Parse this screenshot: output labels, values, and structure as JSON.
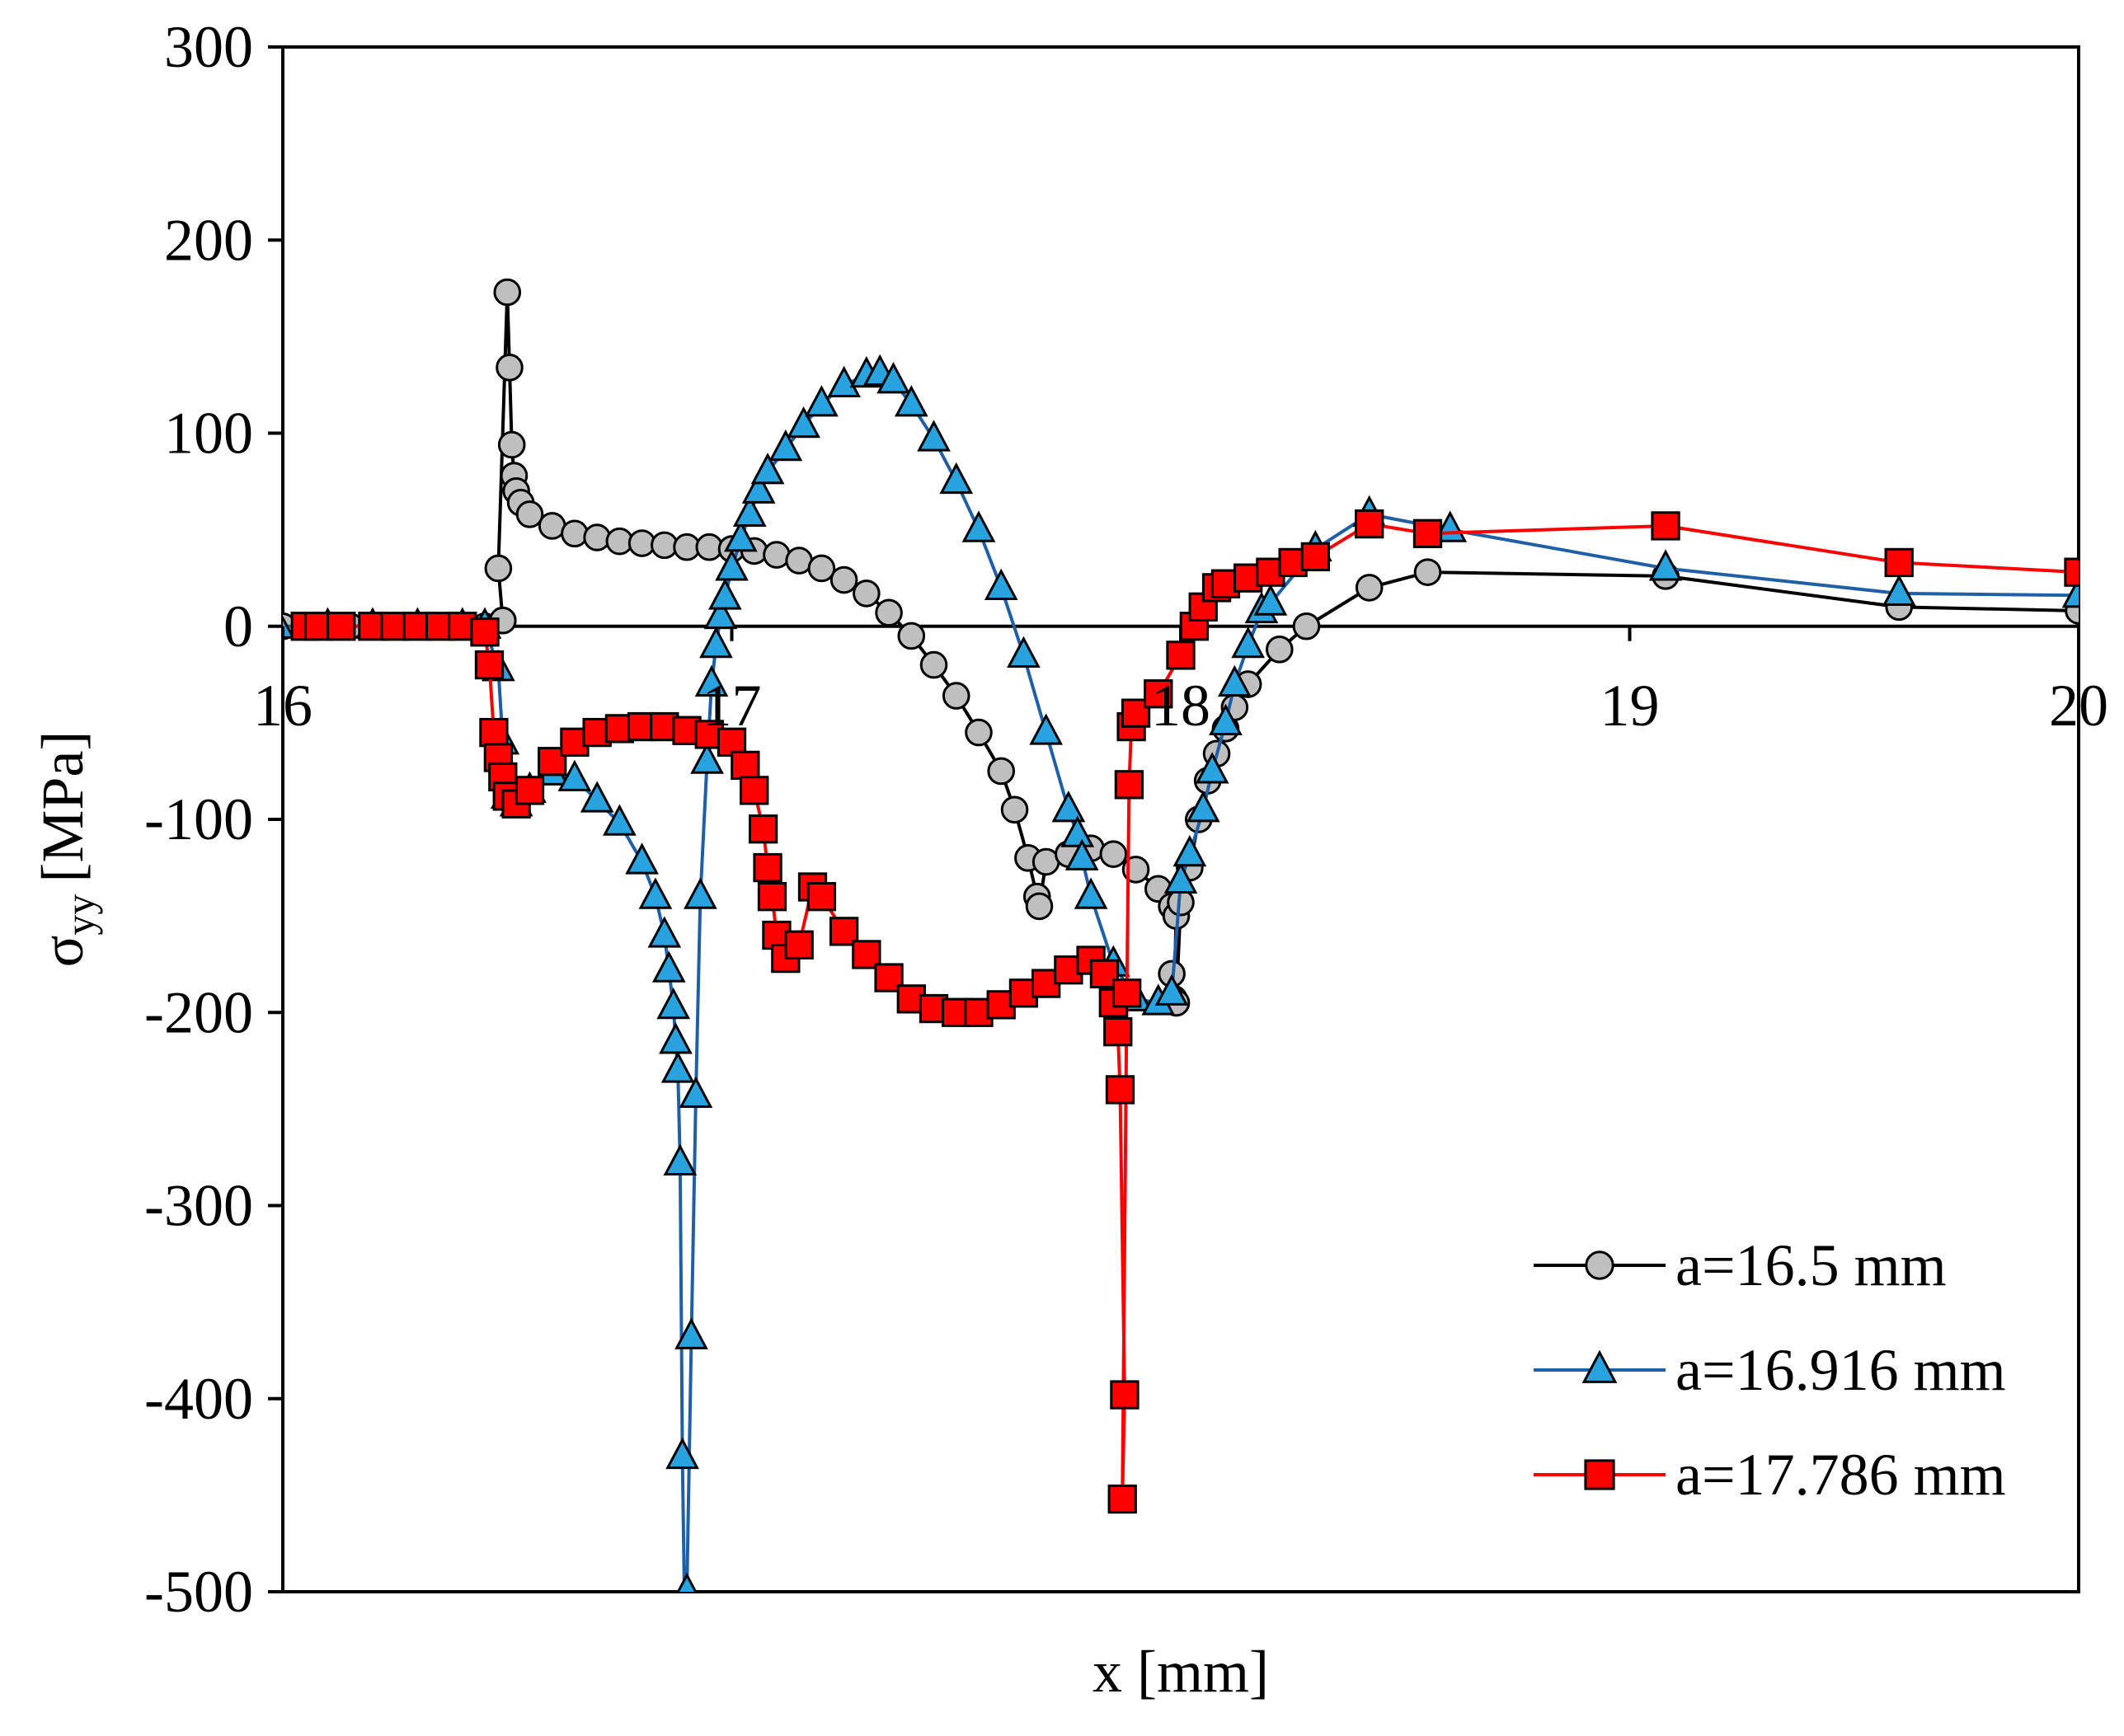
{
  "chart_data": {
    "type": "line",
    "title": "",
    "xlabel": "x [mm]",
    "ylabel_symbol": "σ",
    "ylabel_sub": "yy",
    "ylabel_unit": "[MPa]",
    "xlim": [
      16,
      20
    ],
    "ylim": [
      -500,
      300
    ],
    "xticks": [
      16,
      17,
      18,
      19,
      20
    ],
    "xtick_labels": [
      "16",
      "17",
      "18",
      "19",
      "20"
    ],
    "yticks": [
      300,
      200,
      100,
      0,
      -100,
      -200,
      -300,
      -400,
      -500
    ],
    "ytick_labels": [
      "300",
      "200",
      "100",
      "0",
      "-100",
      "-200",
      "-300",
      "-400",
      "-500"
    ],
    "grid": false,
    "legend_position": "bottom-right",
    "series": [
      {
        "name": "a=16.5 mm",
        "marker": "circle",
        "line_color": "#000000",
        "marker_fill": "#bfbfbf",
        "points": [
          [
            16.0,
            0
          ],
          [
            16.05,
            0
          ],
          [
            16.1,
            0
          ],
          [
            16.15,
            0
          ],
          [
            16.2,
            0
          ],
          [
            16.25,
            0
          ],
          [
            16.3,
            0
          ],
          [
            16.35,
            0
          ],
          [
            16.4,
            0
          ],
          [
            16.45,
            0
          ],
          [
            16.49,
            3
          ],
          [
            16.48,
            30
          ],
          [
            16.5,
            173
          ],
          [
            16.505,
            134
          ],
          [
            16.51,
            94
          ],
          [
            16.515,
            78
          ],
          [
            16.52,
            70
          ],
          [
            16.53,
            64
          ],
          [
            16.55,
            58
          ],
          [
            16.6,
            52
          ],
          [
            16.65,
            48
          ],
          [
            16.7,
            46
          ],
          [
            16.75,
            44
          ],
          [
            16.8,
            43
          ],
          [
            16.85,
            42
          ],
          [
            16.9,
            41
          ],
          [
            16.95,
            41
          ],
          [
            17.0,
            40
          ],
          [
            17.05,
            39
          ],
          [
            17.1,
            37
          ],
          [
            17.15,
            34
          ],
          [
            17.2,
            30
          ],
          [
            17.25,
            24
          ],
          [
            17.3,
            17
          ],
          [
            17.35,
            7
          ],
          [
            17.4,
            -5
          ],
          [
            17.45,
            -20
          ],
          [
            17.5,
            -36
          ],
          [
            17.55,
            -55
          ],
          [
            17.6,
            -75
          ],
          [
            17.63,
            -95
          ],
          [
            17.66,
            -120
          ],
          [
            17.68,
            -140
          ],
          [
            17.685,
            -145
          ],
          [
            17.7,
            -122
          ],
          [
            17.75,
            -118
          ],
          [
            17.8,
            -115
          ],
          [
            17.85,
            -118
          ],
          [
            17.9,
            -126
          ],
          [
            17.95,
            -136
          ],
          [
            17.98,
            -145
          ],
          [
            17.99,
            -150
          ],
          [
            17.985,
            -193
          ],
          [
            17.98,
            -180
          ],
          [
            17.99,
            -195
          ],
          [
            18.0,
            -143
          ],
          [
            18.02,
            -125
          ],
          [
            18.04,
            -100
          ],
          [
            18.06,
            -80
          ],
          [
            18.08,
            -66
          ],
          [
            18.1,
            -53
          ],
          [
            18.12,
            -42
          ],
          [
            18.15,
            -30
          ],
          [
            18.22,
            -12
          ],
          [
            18.28,
            0
          ],
          [
            18.42,
            20
          ],
          [
            18.55,
            28
          ],
          [
            19.08,
            26
          ],
          [
            19.6,
            10
          ],
          [
            20.0,
            8
          ]
        ]
      },
      {
        "name": "a=16.916 mm",
        "marker": "triangle",
        "line_color": "#1f5fa8",
        "marker_fill": "#29a3df",
        "points": [
          [
            15.99,
            0
          ],
          [
            16.1,
            0
          ],
          [
            16.2,
            0
          ],
          [
            16.3,
            0
          ],
          [
            16.4,
            0
          ],
          [
            16.45,
            0
          ],
          [
            16.48,
            -22
          ],
          [
            16.49,
            -60
          ],
          [
            16.5,
            -88
          ],
          [
            16.52,
            -92
          ],
          [
            16.55,
            -85
          ],
          [
            16.6,
            -76
          ],
          [
            16.65,
            -79
          ],
          [
            16.7,
            -90
          ],
          [
            16.75,
            -102
          ],
          [
            16.8,
            -122
          ],
          [
            16.83,
            -140
          ],
          [
            16.85,
            -160
          ],
          [
            16.86,
            -178
          ],
          [
            16.87,
            -197
          ],
          [
            16.875,
            -215
          ],
          [
            16.88,
            -230
          ],
          [
            16.885,
            -278
          ],
          [
            16.89,
            -430
          ],
          [
            16.895,
            -510
          ],
          [
            16.9,
            -500
          ],
          [
            16.91,
            -368
          ],
          [
            16.92,
            -243
          ],
          [
            16.93,
            -140
          ],
          [
            16.945,
            -70
          ],
          [
            16.955,
            -30
          ],
          [
            16.965,
            -10
          ],
          [
            16.975,
            5
          ],
          [
            16.985,
            15
          ],
          [
            17.0,
            30
          ],
          [
            17.02,
            45
          ],
          [
            17.04,
            58
          ],
          [
            17.06,
            70
          ],
          [
            17.08,
            80
          ],
          [
            17.12,
            92
          ],
          [
            17.16,
            104
          ],
          [
            17.2,
            115
          ],
          [
            17.25,
            125
          ],
          [
            17.3,
            130
          ],
          [
            17.33,
            131
          ],
          [
            17.36,
            127
          ],
          [
            17.4,
            115
          ],
          [
            17.45,
            97
          ],
          [
            17.5,
            75
          ],
          [
            17.55,
            50
          ],
          [
            17.6,
            20
          ],
          [
            17.65,
            -15
          ],
          [
            17.7,
            -55
          ],
          [
            17.75,
            -95
          ],
          [
            17.77,
            -108
          ],
          [
            17.78,
            -120
          ],
          [
            17.8,
            -140
          ],
          [
            17.85,
            -175
          ],
          [
            17.9,
            -193
          ],
          [
            17.95,
            -195
          ],
          [
            17.98,
            -190
          ],
          [
            18.0,
            -132
          ],
          [
            18.02,
            -118
          ],
          [
            18.05,
            -95
          ],
          [
            18.07,
            -75
          ],
          [
            18.1,
            -50
          ],
          [
            18.12,
            -30
          ],
          [
            18.15,
            -10
          ],
          [
            18.18,
            8
          ],
          [
            18.2,
            12
          ],
          [
            18.3,
            40
          ],
          [
            18.42,
            58
          ],
          [
            18.6,
            50
          ],
          [
            19.08,
            30
          ],
          [
            19.6,
            17
          ],
          [
            20.0,
            16
          ]
        ]
      },
      {
        "name": "a=17.786 mm",
        "marker": "square",
        "line_color": "#ff0000",
        "marker_fill": "#ff0000",
        "points": [
          [
            16.05,
            0
          ],
          [
            16.08,
            0
          ],
          [
            16.13,
            0
          ],
          [
            16.2,
            0
          ],
          [
            16.25,
            0
          ],
          [
            16.3,
            0
          ],
          [
            16.35,
            0
          ],
          [
            16.4,
            0
          ],
          [
            16.45,
            -3
          ],
          [
            16.46,
            -20
          ],
          [
            16.47,
            -55
          ],
          [
            16.48,
            -68
          ],
          [
            16.49,
            -78
          ],
          [
            16.5,
            -88
          ],
          [
            16.52,
            -92
          ],
          [
            16.55,
            -85
          ],
          [
            16.6,
            -70
          ],
          [
            16.65,
            -60
          ],
          [
            16.7,
            -55
          ],
          [
            16.75,
            -53
          ],
          [
            16.8,
            -52
          ],
          [
            16.85,
            -52
          ],
          [
            16.9,
            -54
          ],
          [
            16.95,
            -56
          ],
          [
            17.0,
            -60
          ],
          [
            17.03,
            -72
          ],
          [
            17.05,
            -85
          ],
          [
            17.07,
            -105
          ],
          [
            17.08,
            -125
          ],
          [
            17.09,
            -140
          ],
          [
            17.1,
            -160
          ],
          [
            17.12,
            -172
          ],
          [
            17.15,
            -165
          ],
          [
            17.18,
            -135
          ],
          [
            17.2,
            -140
          ],
          [
            17.25,
            -158
          ],
          [
            17.3,
            -170
          ],
          [
            17.35,
            -182
          ],
          [
            17.4,
            -193
          ],
          [
            17.45,
            -198
          ],
          [
            17.5,
            -200
          ],
          [
            17.55,
            -200
          ],
          [
            17.6,
            -196
          ],
          [
            17.65,
            -190
          ],
          [
            17.7,
            -185
          ],
          [
            17.75,
            -178
          ],
          [
            17.8,
            -173
          ],
          [
            17.83,
            -180
          ],
          [
            17.85,
            -195
          ],
          [
            17.86,
            -210
          ],
          [
            17.865,
            -240
          ],
          [
            17.875,
            -398
          ],
          [
            17.87,
            -452
          ],
          [
            17.88,
            -190
          ],
          [
            17.885,
            -82
          ],
          [
            17.89,
            -52
          ],
          [
            17.9,
            -45
          ],
          [
            17.95,
            -35
          ],
          [
            18.0,
            -15
          ],
          [
            18.03,
            0
          ],
          [
            18.05,
            10
          ],
          [
            18.08,
            20
          ],
          [
            18.1,
            22
          ],
          [
            18.15,
            25
          ],
          [
            18.2,
            28
          ],
          [
            18.25,
            33
          ],
          [
            18.3,
            36
          ],
          [
            18.42,
            53
          ],
          [
            18.55,
            48
          ],
          [
            19.08,
            52
          ],
          [
            19.6,
            33
          ],
          [
            20.0,
            28
          ]
        ]
      }
    ]
  }
}
